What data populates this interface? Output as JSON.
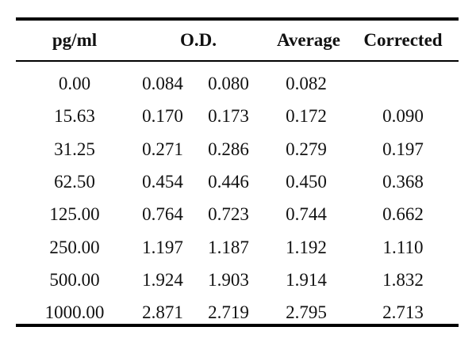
{
  "table": {
    "headers": [
      "pg/ml",
      "O.D.",
      "Average",
      "Corrected"
    ],
    "rows": [
      {
        "conc": "0.00",
        "od1": "0.084",
        "od2": "0.080",
        "avg": "0.082",
        "corr": ""
      },
      {
        "conc": "15.63",
        "od1": "0.170",
        "od2": "0.173",
        "avg": "0.172",
        "corr": "0.090"
      },
      {
        "conc": "31.25",
        "od1": "0.271",
        "od2": "0.286",
        "avg": "0.279",
        "corr": "0.197"
      },
      {
        "conc": "62.50",
        "od1": "0.454",
        "od2": "0.446",
        "avg": "0.450",
        "corr": "0.368"
      },
      {
        "conc": "125.00",
        "od1": "0.764",
        "od2": "0.723",
        "avg": "0.744",
        "corr": "0.662"
      },
      {
        "conc": "250.00",
        "od1": "1.197",
        "od2": "1.187",
        "avg": "1.192",
        "corr": "1.110"
      },
      {
        "conc": "500.00",
        "od1": "1.924",
        "od2": "1.903",
        "avg": "1.914",
        "corr": "1.832"
      },
      {
        "conc": "1000.00",
        "od1": "2.871",
        "od2": "2.719",
        "avg": "2.795",
        "corr": "2.713"
      }
    ]
  }
}
